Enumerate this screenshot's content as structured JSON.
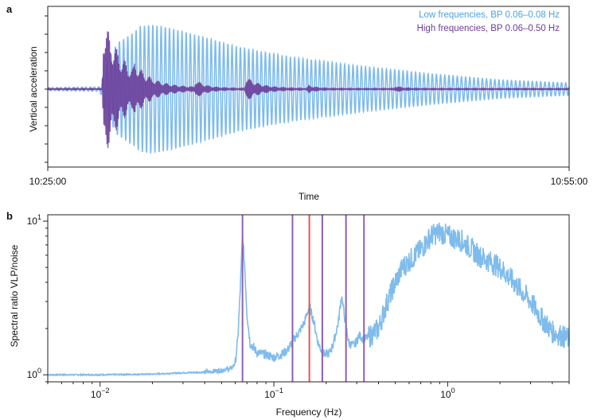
{
  "chart_data": [
    {
      "type": "line",
      "panel_label": "a",
      "xlabel": "Time",
      "ylabel": "Vertical acceleration",
      "x_ticks": [
        "10:25:00",
        "10:55:00"
      ],
      "xlim_minutes": [
        0,
        30
      ],
      "legend_position": "top-right",
      "series": [
        {
          "name": "Low frequencies, BP 0.06–0.08 Hz",
          "color": "#7fbcec",
          "period_min": 0.24,
          "envelope_points": [
            [
              0,
              0.02
            ],
            [
              3.0,
              0.03
            ],
            [
              3.4,
              0.35
            ],
            [
              4.0,
              0.6
            ],
            [
              5.0,
              0.75
            ],
            [
              5.3,
              0.82
            ],
            [
              6.0,
              0.84
            ],
            [
              7.0,
              0.8
            ],
            [
              9.0,
              0.68
            ],
            [
              11.0,
              0.55
            ],
            [
              14.0,
              0.42
            ],
            [
              18.0,
              0.3
            ],
            [
              22.0,
              0.2
            ],
            [
              26.0,
              0.12
            ],
            [
              30.0,
              0.08
            ]
          ]
        },
        {
          "name": "High frequencies, BP 0.06–0.50 Hz",
          "color": "#6a3d9a",
          "period_min": 0.06,
          "bursts": [
            {
              "t_min": 3.2,
              "peak": 0.95,
              "decay_min": 1.3
            },
            {
              "t_min": 5.0,
              "peak": 0.15,
              "decay_min": 0.5
            },
            {
              "t_min": 8.5,
              "peak": 0.1,
              "decay_min": 0.5
            },
            {
              "t_min": 11.4,
              "peak": 0.15,
              "decay_min": 0.8
            },
            {
              "t_min": 15.0,
              "peak": 0.04,
              "decay_min": 0.4
            },
            {
              "t_min": 20.0,
              "peak": 0.03,
              "decay_min": 0.4
            }
          ]
        }
      ]
    },
    {
      "type": "line",
      "panel_label": "b",
      "xlabel": "Frequency (Hz)",
      "ylabel": "Spectral ratio VLP/noise",
      "xscale": "log",
      "yscale": "log",
      "xlim": [
        0.005,
        5
      ],
      "ylim": [
        0.9,
        11
      ],
      "x_tick_labels": [
        {
          "value": 0.01,
          "base": "10",
          "exp": "−2"
        },
        {
          "value": 0.1,
          "base": "10",
          "exp": "−1"
        },
        {
          "value": 1,
          "base": "10",
          "exp": "0"
        }
      ],
      "y_tick_labels": [
        {
          "value": 1,
          "base": "10",
          "exp": "0"
        },
        {
          "value": 10,
          "base": "10",
          "exp": "1"
        }
      ],
      "series": [
        {
          "color": "#7fbcec",
          "points": [
            [
              0.005,
              1.0
            ],
            [
              0.01,
              1.0
            ],
            [
              0.02,
              1.01
            ],
            [
              0.03,
              1.03
            ],
            [
              0.04,
              1.04
            ],
            [
              0.05,
              1.07
            ],
            [
              0.057,
              1.1
            ],
            [
              0.06,
              1.2
            ],
            [
              0.062,
              1.7
            ],
            [
              0.064,
              3.5
            ],
            [
              0.066,
              8.0
            ],
            [
              0.068,
              5.0
            ],
            [
              0.07,
              2.5
            ],
            [
              0.073,
              1.6
            ],
            [
              0.08,
              1.4
            ],
            [
              0.09,
              1.35
            ],
            [
              0.1,
              1.3
            ],
            [
              0.11,
              1.35
            ],
            [
              0.12,
              1.45
            ],
            [
              0.13,
              1.7
            ],
            [
              0.14,
              1.9
            ],
            [
              0.15,
              2.2
            ],
            [
              0.16,
              2.8
            ],
            [
              0.17,
              2.2
            ],
            [
              0.18,
              1.6
            ],
            [
              0.19,
              1.4
            ],
            [
              0.2,
              1.35
            ],
            [
              0.21,
              1.4
            ],
            [
              0.22,
              1.6
            ],
            [
              0.235,
              2.2
            ],
            [
              0.245,
              3.3
            ],
            [
              0.255,
              2.4
            ],
            [
              0.27,
              1.6
            ],
            [
              0.29,
              1.55
            ],
            [
              0.31,
              1.8
            ],
            [
              0.33,
              1.7
            ],
            [
              0.36,
              1.8
            ],
            [
              0.4,
              2.0
            ],
            [
              0.45,
              3.0
            ],
            [
              0.5,
              4.0
            ],
            [
              0.55,
              5.0
            ],
            [
              0.6,
              5.5
            ],
            [
              0.7,
              6.5
            ],
            [
              0.8,
              8.0
            ],
            [
              0.9,
              8.5
            ],
            [
              1.0,
              8.0
            ],
            [
              1.2,
              7.5
            ],
            [
              1.5,
              6.0
            ],
            [
              2.0,
              5.0
            ],
            [
              2.5,
              3.8
            ],
            [
              3.0,
              3.0
            ],
            [
              3.5,
              2.3
            ],
            [
              4.0,
              1.9
            ],
            [
              4.5,
              1.8
            ],
            [
              5.0,
              1.7
            ]
          ]
        }
      ],
      "vertical_lines": [
        {
          "x": 0.066,
          "color": "#8e5fb5"
        },
        {
          "x": 0.128,
          "color": "#8e5fb5"
        },
        {
          "x": 0.16,
          "color": "#e8534f"
        },
        {
          "x": 0.19,
          "color": "#8e5fb5"
        },
        {
          "x": 0.26,
          "color": "#8e5fb5"
        },
        {
          "x": 0.33,
          "color": "#8e5fb5"
        }
      ]
    }
  ]
}
